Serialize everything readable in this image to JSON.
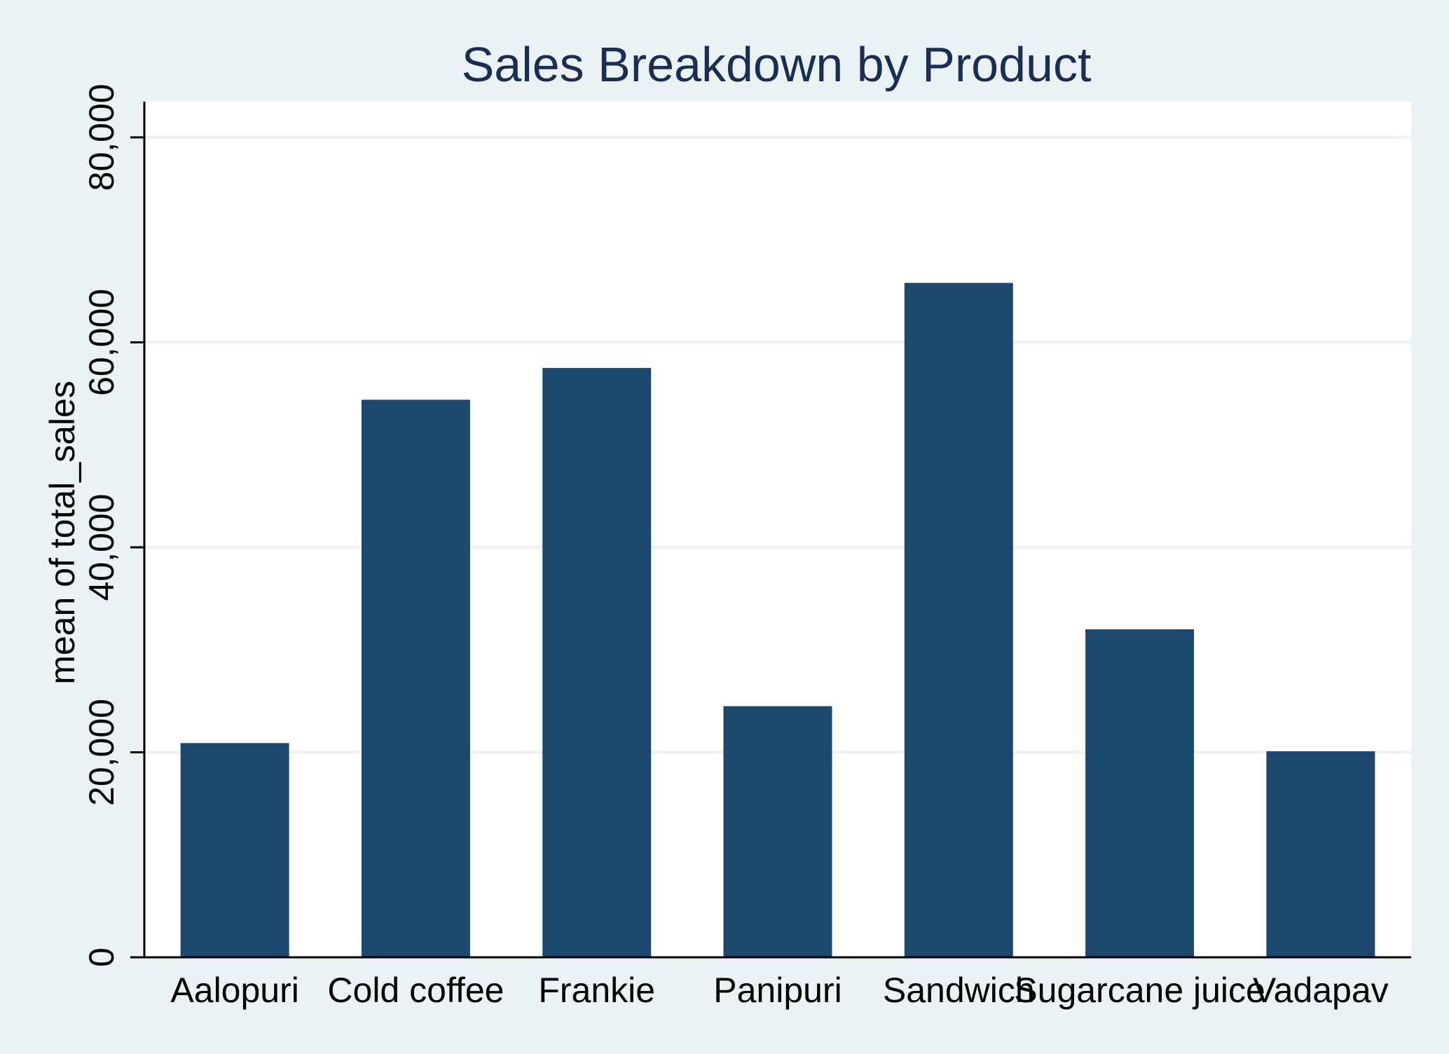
{
  "chart_data": {
    "type": "bar",
    "title": "Sales Breakdown by Product",
    "xlabel": "",
    "ylabel": "mean of total_sales",
    "categories": [
      "Aalopuri",
      "Cold coffee",
      "Frankie",
      "Panipuri",
      "Sandwich",
      "Sugarcane juice",
      "Vadapav"
    ],
    "values": [
      20900,
      54400,
      57500,
      24500,
      65800,
      32000,
      20100
    ],
    "ylim": [
      0,
      80000
    ],
    "yticks": [
      0,
      20000,
      40000,
      60000,
      80000
    ],
    "ytick_labels": [
      "0",
      "20,000",
      "40,000",
      "60,000",
      "80,000"
    ],
    "grid": true,
    "colors": {
      "bar": "#1c476f",
      "grid": "#eaf2f3",
      "plot_background": "#ffffff",
      "page_background": "#eaf2f3",
      "title": "#1a2e55"
    }
  }
}
